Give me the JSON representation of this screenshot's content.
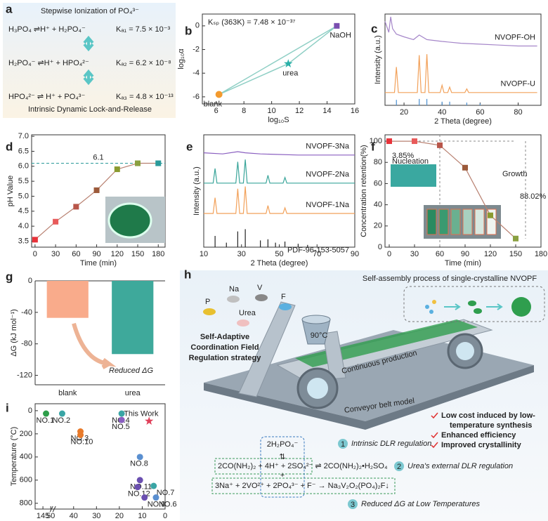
{
  "panel_a": {
    "label": "a",
    "title": "Stepwise Ionization of PO₄³⁻",
    "reactions": [
      {
        "equation": "H₃PO₄ ⇌H⁺ + H₂PO₄⁻",
        "constant": "Kₐ₁ = 7.5 × 10⁻³"
      },
      {
        "equation": "H₂PO₄⁻ ⇌H⁺ + HPO₄²⁻",
        "constant": "Kₐ₂ = 6.2 × 10⁻⁸"
      },
      {
        "equation": "HPO₄²⁻ ⇌ H⁺ + PO₄³⁻",
        "constant": "Kₐ₃ = 4.8 × 10⁻¹³"
      }
    ],
    "footer": "Intrinsic Dynamic Lock-and-Release"
  },
  "chart_data": [
    {
      "type": "scatter",
      "label": "b",
      "annotation": "Kₛₚ (363K) = 7.48 × 10⁻³⁷",
      "xlabel": "log₁₀S",
      "ylabel": "log₁₀α",
      "points": [
        {
          "label": "blank",
          "x": 6.2,
          "y": -5.8,
          "color": "#f39a2e"
        },
        {
          "label": "urea",
          "x": 11.2,
          "y": -3.2,
          "color": "#2ab0a8",
          "marker": "star"
        },
        {
          "label": "NaOH",
          "x": 14.7,
          "y": 0,
          "color": "#7a4fb0",
          "marker": "square"
        }
      ],
      "xlim": [
        5,
        16
      ],
      "xticks": [
        6,
        8,
        10,
        12,
        14,
        16
      ],
      "ylim": [
        -6.6,
        1
      ],
      "yticks": [
        -6,
        -4,
        -2,
        0
      ]
    },
    {
      "type": "line",
      "label": "c",
      "xlabel": "2 Theta (degree)",
      "ylabel": "Intensity (a.u.)",
      "xlim": [
        10,
        92
      ],
      "xticks": [
        20,
        40,
        60,
        80
      ],
      "ylim": [
        0,
        100
      ],
      "series": [
        {
          "name": "NVOPF-OH",
          "color": "#a586c9",
          "x": [
            10,
            12,
            13,
            14,
            16,
            20,
            25,
            28,
            32,
            40,
            50,
            60,
            70,
            80,
            90
          ],
          "values": [
            92,
            80,
            97,
            84,
            78,
            75,
            72,
            77,
            72,
            70,
            68,
            67,
            66,
            65,
            65
          ]
        },
        {
          "name": "NVOPF-U",
          "color": "#f2a15a",
          "x": [
            10,
            15,
            16,
            17,
            27,
            28,
            29,
            31,
            32,
            33,
            39,
            40,
            41,
            43,
            44,
            45,
            52,
            53,
            54,
            60,
            90
          ],
          "values": [
            14,
            14,
            42,
            14,
            14,
            55,
            14,
            14,
            56,
            14,
            14,
            22,
            14,
            14,
            20,
            14,
            14,
            18,
            14,
            14,
            14
          ]
        },
        {
          "color": "#4a8fd0",
          "style": "sticks",
          "x": [
            16,
            28,
            32,
            40,
            44,
            53,
            60
          ],
          "values": [
            6,
            7,
            7,
            4,
            4,
            3,
            2
          ]
        }
      ]
    },
    {
      "type": "line",
      "label": "d",
      "xlabel": "Time (min)",
      "ylabel": "pH Value",
      "x": [
        0,
        30,
        60,
        90,
        120,
        150,
        180
      ],
      "values": [
        3.55,
        4.15,
        4.65,
        5.2,
        5.9,
        6.1,
        6.1
      ],
      "colors": [
        "#e8333a",
        "#e85a5a",
        "#b8564a",
        "#9c5a3a",
        "#8a9a30",
        "#8aa040",
        "#2a9a9a"
      ],
      "hline": 6.1,
      "xlim": [
        -5,
        190
      ],
      "xticks": [
        0,
        30,
        60,
        90,
        120,
        150,
        180
      ],
      "ylim": [
        3.3,
        7.05
      ],
      "yticks": [
        3.5,
        {
          "value": 4,
          "label": "4.0"
        },
        4.5,
        {
          "value": 5,
          "label": "5.0"
        },
        5.5,
        {
          "value": 6,
          "label": "6.0"
        },
        6.5,
        {
          "value": 7,
          "label": "7.0"
        }
      ]
    },
    {
      "type": "line",
      "label": "e",
      "xlabel": "2 Theta (degree)",
      "ylabel": "Intensity (a.u.)",
      "xlim": [
        10,
        90
      ],
      "xticks": [
        10,
        30,
        50,
        70,
        90
      ],
      "ylim": [
        0,
        100
      ],
      "series": [
        {
          "name": "NVOPF-3Na",
          "color": "#8a5fc0",
          "x": [
            10,
            20,
            28,
            32,
            40,
            60,
            90
          ],
          "values": [
            84,
            83,
            85,
            84,
            83,
            82,
            82
          ]
        },
        {
          "name": "NVOPF-2Na",
          "color": "#3aa59a",
          "x": [
            10,
            15,
            16,
            17,
            27,
            28,
            29,
            31,
            32,
            33,
            43,
            44,
            45,
            52,
            53,
            54,
            90
          ],
          "values": [
            57,
            57,
            70,
            57,
            57,
            76,
            57,
            57,
            78,
            57,
            57,
            64,
            57,
            57,
            62,
            57,
            57
          ]
        },
        {
          "name": "NVOPF-1Na",
          "color": "#f2a15a",
          "x": [
            10,
            15,
            16,
            17,
            27,
            28,
            29,
            31,
            32,
            33,
            43,
            44,
            45,
            52,
            53,
            54,
            90
          ],
          "values": [
            30,
            30,
            44,
            30,
            30,
            52,
            30,
            30,
            54,
            30,
            30,
            37,
            30,
            30,
            35,
            30,
            30
          ]
        },
        {
          "name": "PDF-96-153-5057",
          "color": "#222",
          "style": "sticks",
          "x": [
            16,
            22,
            28,
            32,
            40,
            44,
            48,
            53,
            60,
            65
          ],
          "values": [
            10,
            4,
            14,
            16,
            6,
            7,
            4,
            5,
            3,
            2
          ]
        }
      ]
    },
    {
      "type": "line",
      "label": "f",
      "xlabel": "Time (min)",
      "ylabel": "Concentration retention(%)",
      "x": [
        0,
        30,
        60,
        90,
        120,
        150
      ],
      "values": [
        100,
        100,
        96.15,
        75,
        30,
        8.13
      ],
      "colors": [
        "#e8333a",
        "#e85a5a",
        "#b8564a",
        "#9c5a3a",
        "#8a9a30",
        "#8aa040"
      ],
      "annotations": [
        "3.85%",
        "88.02%",
        "Nucleation",
        "Growth"
      ],
      "xlim": [
        -5,
        180
      ],
      "xticks": [
        0,
        30,
        60,
        90,
        120,
        150,
        180
      ],
      "ylim": [
        0,
        106
      ],
      "yticks": [
        0,
        20,
        40,
        60,
        80,
        100
      ]
    },
    {
      "type": "bar",
      "label": "g",
      "ylabel": "ΔG (kJ mol⁻¹)",
      "categories": [
        "blank",
        "urea"
      ],
      "values": [
        -47,
        -93
      ],
      "colors": [
        "#f9ab8b",
        "#3ea99b"
      ],
      "annotation": "Reduced ΔG",
      "ylim": [
        -132,
        0
      ],
      "yticks": [
        0,
        -40,
        -80,
        -120
      ]
    },
    {
      "type": "scatter",
      "label": "i",
      "xlabel": "Time (h)",
      "ylabel": "Temperature (°C)",
      "xlim": [
        150,
        0
      ],
      "xbreak": [
        140,
        50
      ],
      "xticks": [
        145,
        50,
        40,
        30,
        20,
        10,
        0
      ],
      "ylim": [
        -60,
        850
      ],
      "y_reversed": true,
      "yticks": [
        0,
        200,
        400,
        600,
        800
      ],
      "points": [
        {
          "label": "NO.1",
          "x": 143,
          "y": 25,
          "color": "#2e9e4a"
        },
        {
          "label": "NO.2",
          "x": 45,
          "y": 25,
          "color": "#3aa5a5"
        },
        {
          "label": "NO.3",
          "x": 37,
          "y": 180,
          "color": "#e87a2a"
        },
        {
          "label": "NO.10",
          "x": 37,
          "y": 210,
          "color": "#e87a2a"
        },
        {
          "label": "NO.4",
          "x": 19,
          "y": 25,
          "color": "#3aa5a5"
        },
        {
          "label": "NO.5",
          "x": 19,
          "y": 80,
          "color": "#8a5fc0"
        },
        {
          "label": "This Work",
          "x": 7,
          "y": 90,
          "color": "#e0405a",
          "marker": "star"
        },
        {
          "label": "NO.8",
          "x": 11,
          "y": 400,
          "color": "#5a8fd0"
        },
        {
          "label": "NO.11",
          "x": 11,
          "y": 600,
          "color": "#6a4fb0"
        },
        {
          "label": "NO.12",
          "x": 12,
          "y": 660,
          "color": "#6a4fb0"
        },
        {
          "label": "NO.7",
          "x": 5,
          "y": 650,
          "color": "#3aa5a5"
        },
        {
          "label": "NO.9",
          "x": 9,
          "y": 750,
          "color": "#6a4fb0"
        },
        {
          "label": "NO.6",
          "x": 4,
          "y": 750,
          "color": "#5a8fd0"
        }
      ]
    }
  ],
  "panel_h": {
    "label": "h",
    "assembly": "Self-assembly process of single-crystalline NVOPF",
    "elements": [
      "P",
      "Na",
      "V",
      "F",
      "Urea"
    ],
    "temperature": "90°C",
    "strategy": [
      "Self-Adaptive",
      "Coordination Field",
      "Regulation strategy"
    ],
    "production": "Continuous production",
    "model": "Conveyor belt model",
    "advantages": [
      "Low cost induced by low-",
      "temperature synthesis",
      "Enhanced efficiency",
      "Improved crystallinity"
    ],
    "equations": [
      "2H₂PO₄⁻",
      "⇅",
      "2CO(NH₂)₂ + 4H⁺ + 2SO₄²⁻ ⇌ 2CO(NH₂)₂•H₂SO₄",
      "+",
      "3Na⁺ + 2VO²⁺ + 2PO₄³⁻ + F⁻ → Na₃V₂O₂(PO₄)₂F↓"
    ],
    "steps": [
      {
        "number": "1",
        "text": "Intrinsic DLR regulation"
      },
      {
        "number": "2",
        "text": "Urea's external DLR regulation"
      },
      {
        "number": "3",
        "text": "Reduced ΔG at Low Temperatures"
      }
    ]
  }
}
